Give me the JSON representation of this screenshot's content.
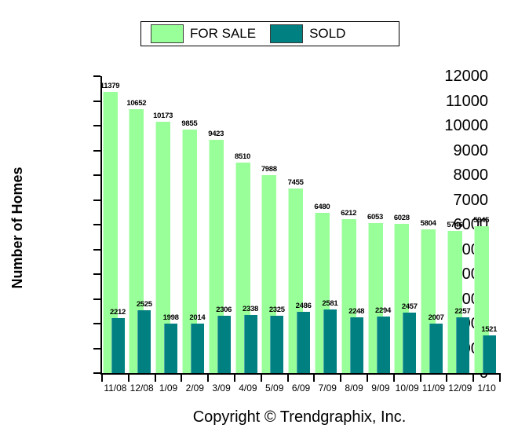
{
  "chart_data": {
    "type": "bar",
    "style": "overlapped",
    "title": "",
    "xlabel": "",
    "ylabel": "Number of Homes",
    "ylim": [
      0,
      12000
    ],
    "ytick_step": 1000,
    "grid": false,
    "legend_position": "top-center",
    "bar_value_labels": true,
    "categories": [
      "11/08",
      "12/08",
      "1/09",
      "2/09",
      "3/09",
      "4/09",
      "5/09",
      "6/09",
      "7/09",
      "8/09",
      "9/09",
      "10/09",
      "11/09",
      "12/09",
      "1/10"
    ],
    "series": [
      {
        "name": "FOR SALE",
        "color": "#99FF99",
        "values": [
          11379,
          10652,
          10173,
          9855,
          9423,
          8510,
          7988,
          7455,
          6480,
          6212,
          6053,
          6028,
          5804,
          5746,
          5945
        ]
      },
      {
        "name": "SOLD",
        "color": "#008080",
        "values": [
          2212,
          2525,
          1998,
          2014,
          2306,
          2338,
          2325,
          2486,
          2581,
          2248,
          2294,
          2457,
          2007,
          2257,
          1521
        ]
      }
    ],
    "axis_color": "#000000",
    "label_color": "#000000"
  },
  "footer": {
    "text": "Copyright © Trendgraphix, Inc."
  }
}
